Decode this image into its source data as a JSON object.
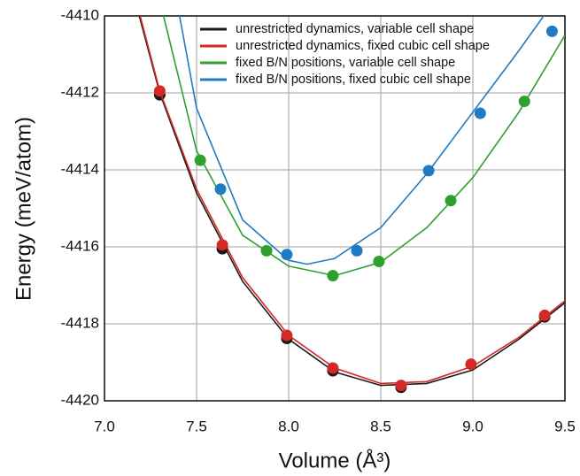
{
  "chart_data": {
    "type": "scatter-fit",
    "xlabel": "Volume (Å³)",
    "ylabel": "Energy (meV/atom)",
    "xlim": [
      7.0,
      9.5
    ],
    "xticks": [
      {
        "value": 7.0,
        "label": "7.0"
      },
      {
        "value": 7.5,
        "label": "7.5"
      },
      {
        "value": 8.0,
        "label": "8.0"
      },
      {
        "value": 8.5,
        "label": "8.5"
      },
      {
        "value": 9.0,
        "label": "9.0"
      },
      {
        "value": 9.5,
        "label": "9.5"
      }
    ],
    "ylim": [
      -4420,
      -4410
    ],
    "yticks": [
      -4420,
      -4418,
      -4416,
      -4414,
      -4412,
      -4410
    ],
    "grid": true,
    "legend": "top",
    "series": [
      {
        "name": "unrestricted dynamics, variable cell shape",
        "color": "#1a1a1a",
        "x": [
          7.3,
          7.64,
          7.99,
          8.24,
          8.61,
          9.39
        ],
        "values": [
          -4412.05,
          -4416.05,
          -4418.38,
          -4419.22,
          -4419.65,
          -4417.82
        ],
        "fit_x": [
          7.15,
          7.3,
          7.5,
          7.75,
          8.0,
          8.25,
          8.5,
          8.75,
          9.0,
          9.25,
          9.5
        ],
        "fit_y": [
          -4409.3,
          -4412.0,
          -4414.6,
          -4416.9,
          -4418.4,
          -4419.25,
          -4419.6,
          -4419.55,
          -4419.2,
          -4418.4,
          -4417.45
        ]
      },
      {
        "name": "unrestricted dynamics, fixed cubic cell shape",
        "color": "#d42a26",
        "x": [
          7.3,
          7.64,
          7.99,
          8.24,
          8.61,
          8.99,
          9.39
        ],
        "values": [
          -4411.95,
          -4415.95,
          -4418.3,
          -4419.15,
          -4419.6,
          -4419.05,
          -4417.78
        ],
        "fit_x": [
          7.15,
          7.3,
          7.5,
          7.75,
          8.0,
          8.25,
          8.5,
          8.75,
          9.0,
          9.25,
          9.5
        ],
        "fit_y": [
          -4409.2,
          -4411.95,
          -4414.5,
          -4416.8,
          -4418.3,
          -4419.15,
          -4419.55,
          -4419.5,
          -4419.1,
          -4418.35,
          -4417.4
        ]
      },
      {
        "name": "fixed B/N positions, variable cell shape",
        "color": "#2ea02e",
        "x": [
          7.52,
          7.88,
          8.24,
          8.49,
          8.88,
          9.28
        ],
        "values": [
          -4413.75,
          -4416.1,
          -4416.75,
          -4416.38,
          -4414.8,
          -4412.22
        ],
        "fit_x": [
          7.3,
          7.5,
          7.75,
          8.0,
          8.25,
          8.5,
          8.75,
          9.0,
          9.25,
          9.5
        ],
        "fit_y": [
          -4409.6,
          -4413.5,
          -4415.7,
          -4416.5,
          -4416.75,
          -4416.4,
          -4415.5,
          -4414.2,
          -4412.5,
          -4410.5
        ]
      },
      {
        "name": "fixed B/N positions, fixed cubic cell shape",
        "color": "#1f7bc4",
        "x": [
          7.63,
          7.99,
          8.37,
          8.76,
          9.04,
          9.43
        ],
        "values": [
          -4414.5,
          -4416.2,
          -4416.1,
          -4414.02,
          -4412.53,
          -4410.4
        ],
        "fit_x": [
          7.4,
          7.5,
          7.75,
          8.0,
          8.1,
          8.25,
          8.5,
          8.75,
          9.0,
          9.25,
          9.4
        ],
        "fit_y": [
          -4409.8,
          -4412.4,
          -4415.3,
          -4416.35,
          -4416.45,
          -4416.3,
          -4415.5,
          -4414.1,
          -4412.5,
          -4410.9,
          -4409.9
        ]
      }
    ]
  }
}
